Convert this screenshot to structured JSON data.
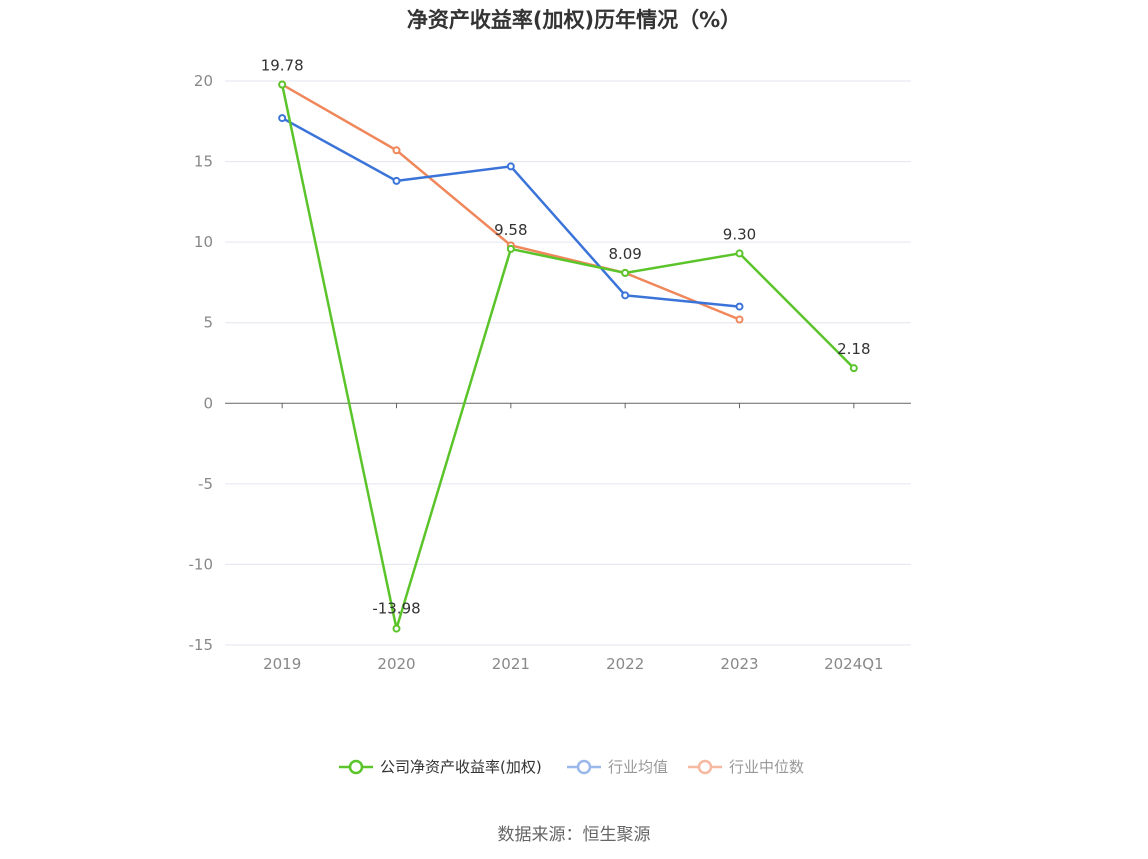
{
  "chart_data": {
    "type": "line",
    "title": "净资产收益率(加权)历年情况（%）",
    "categories": [
      "2019",
      "2020",
      "2021",
      "2022",
      "2023",
      "2024Q1"
    ],
    "ylim": [
      -15,
      20
    ],
    "yticks": [
      20,
      15,
      10,
      5,
      0,
      -5,
      -10,
      -15
    ],
    "grid": true,
    "legend_position": "bottom",
    "series": [
      {
        "name": "公司净资产收益率(加权)",
        "color": "#5ac42a",
        "values": [
          19.78,
          -13.98,
          9.58,
          8.09,
          9.3,
          2.18
        ],
        "labels": [
          "19.78",
          "-13.98",
          "9.58",
          "8.09",
          "9.30",
          "2.18"
        ]
      },
      {
        "name": "行业均值",
        "color": "#3b74d9",
        "values": [
          17.7,
          13.8,
          14.7,
          6.7,
          6.0,
          null
        ]
      },
      {
        "name": "行业中位数",
        "color": "#f0875a",
        "values": [
          19.78,
          15.7,
          9.8,
          8.09,
          5.2,
          null
        ]
      }
    ]
  },
  "source_text": "数据来源：恒生聚源"
}
